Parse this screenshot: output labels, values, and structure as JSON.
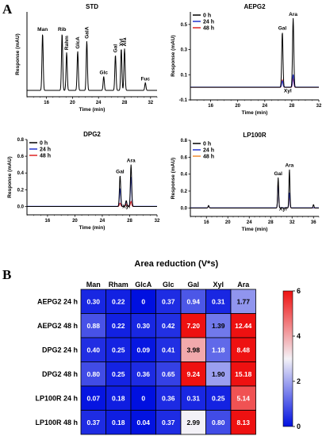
{
  "panel_labels": {
    "a": "A",
    "b": "B"
  },
  "chart_data": [
    {
      "type": "line",
      "title": "STD",
      "xlabel": "Time (min)",
      "ylabel": "Response (mAU)",
      "xlim": [
        13,
        33
      ],
      "xticks": [
        16,
        20,
        24,
        28,
        32
      ],
      "ylim": [
        -0.05,
        0.62
      ],
      "yticks": [],
      "series": [
        {
          "name": "",
          "color": "#000000",
          "peaks": [
            [
              15.4,
              0.45
            ],
            [
              18.4,
              0.45
            ],
            [
              19.1,
              0.3
            ],
            [
              20.8,
              0.31
            ],
            [
              22.2,
              0.39
            ],
            [
              24.8,
              0.11
            ],
            [
              26.6,
              0.28
            ],
            [
              27.5,
              0.33
            ],
            [
              28.0,
              0.33
            ],
            [
              31.2,
              0.06
            ]
          ]
        }
      ],
      "annotations": [
        {
          "label": "Man",
          "x": 15.4,
          "y": 0.45
        },
        {
          "label": "Rib",
          "x": 18.4,
          "y": 0.45
        },
        {
          "label": "Rahm",
          "x": 19.1,
          "y": 0.3,
          "vertical": true
        },
        {
          "label": "GlcA",
          "x": 20.8,
          "y": 0.31,
          "vertical": true
        },
        {
          "label": "GalA",
          "x": 22.2,
          "y": 0.39,
          "vertical": true
        },
        {
          "label": "Glc",
          "x": 24.8,
          "y": 0.11
        },
        {
          "label": "Gal",
          "x": 26.6,
          "y": 0.28,
          "vertical": true
        },
        {
          "label": "Xyl",
          "x": 27.5,
          "y": 0.33,
          "vertical": true
        },
        {
          "label": "Ara",
          "x": 28.0,
          "y": 0.33,
          "vertical": true
        },
        {
          "label": "Fuc",
          "x": 31.2,
          "y": 0.06
        }
      ]
    },
    {
      "type": "line",
      "title": "AEPG2",
      "xlabel": "Time (min)",
      "ylabel": "Response (mAU)",
      "xlim": [
        13,
        32
      ],
      "xticks": [
        16,
        20,
        24,
        28,
        32
      ],
      "ylim": [
        -0.1,
        0.6
      ],
      "yticks": [
        -0.1,
        0.1,
        0.3,
        0.5
      ],
      "series": [
        {
          "name": "0 h",
          "color": "#000000",
          "peaks": [
            [
              26.6,
              0.44
            ],
            [
              28.2,
              0.55
            ]
          ]
        },
        {
          "name": "24 h",
          "color": "#2233cc",
          "peaks": [
            [
              26.6,
              0.05
            ],
            [
              28.2,
              0.1
            ]
          ]
        },
        {
          "name": "48 h",
          "color": "#dd2222",
          "peaks": [
            [
              26.6,
              0.06
            ],
            [
              28.2,
              0.07
            ]
          ]
        }
      ],
      "annotations": [
        {
          "label": "Gal",
          "x": 26.6,
          "y": 0.44
        },
        {
          "label": "Ara",
          "x": 28.2,
          "y": 0.55
        },
        {
          "label": "Xyl",
          "x": 27.4,
          "y": -0.04
        }
      ]
    },
    {
      "type": "line",
      "title": "DPG2",
      "xlabel": "Time (min)",
      "ylabel": "Response (mAU)",
      "xlim": [
        13,
        32
      ],
      "xticks": [
        16,
        20,
        24,
        28,
        32
      ],
      "ylim": [
        -0.1,
        0.8
      ],
      "yticks": [
        0.0,
        0.2,
        0.4,
        0.6,
        0.8
      ],
      "series": [
        {
          "name": "0 h",
          "color": "#000000",
          "peaks": [
            [
              26.6,
              0.37
            ],
            [
              27.5,
              0.07
            ],
            [
              28.2,
              0.5
            ]
          ]
        },
        {
          "name": "24 h",
          "color": "#2233cc",
          "peaks": [
            [
              26.6,
              0.21
            ],
            [
              27.5,
              0.06
            ],
            [
              28.2,
              0.35
            ]
          ]
        },
        {
          "name": "48 h",
          "color": "#dd2222",
          "peaks": [
            [
              26.6,
              0.04
            ],
            [
              27.5,
              0.03
            ],
            [
              28.2,
              0.06
            ]
          ]
        }
      ],
      "annotations": [
        {
          "label": "Gal",
          "x": 26.6,
          "y": 0.37
        },
        {
          "label": "Ara",
          "x": 28.2,
          "y": 0.5
        },
        {
          "label": "Xyl",
          "x": 27.5,
          "y": -0.02
        }
      ]
    },
    {
      "type": "line",
      "title": "LP100R",
      "xlabel": "Time (min)",
      "ylabel": "Response (mAU)",
      "xlim": [
        13,
        37
      ],
      "xticks": [
        16,
        20,
        24,
        28,
        32,
        36
      ],
      "ylim": [
        -0.1,
        0.8
      ],
      "yticks": [
        0.0,
        0.2,
        0.4,
        0.6,
        0.8
      ],
      "series": [
        {
          "name": "0 h",
          "color": "#000000",
          "peaks": [
            [
              29.4,
              0.36
            ],
            [
              31.5,
              0.46
            ],
            [
              16.4,
              0.03
            ],
            [
              36.0,
              0.04
            ]
          ]
        },
        {
          "name": "24 h",
          "color": "#2233cc",
          "peaks": [
            [
              29.4,
              0.3
            ],
            [
              31.5,
              0.18
            ],
            [
              16.4,
              0.02
            ]
          ]
        },
        {
          "name": "48 h",
          "color": "#f08a30",
          "peaks": [
            [
              29.4,
              0.32
            ],
            [
              31.5,
              0.14
            ],
            [
              16.4,
              0.02
            ]
          ]
        }
      ],
      "annotations": [
        {
          "label": "Gal",
          "x": 29.4,
          "y": 0.36
        },
        {
          "label": "Ara",
          "x": 31.5,
          "y": 0.46
        },
        {
          "label": "Xyl",
          "x": 30.3,
          "y": -0.03
        }
      ]
    },
    {
      "type": "heatmap",
      "title": "Area reduction (V*s)",
      "columns": [
        "Man",
        "Rham",
        "GlcA",
        "Glc",
        "Gal",
        "Xyl",
        "Ara"
      ],
      "rows": [
        "AEPG2 24 h",
        "AEPG2 48 h",
        "DPG2 24 h",
        "DPG2 48 h",
        "LP100R 24 h",
        "LP100R 48 h"
      ],
      "values": [
        [
          "0.30",
          "0.22",
          "0",
          "0.37",
          "0.94",
          "0.31",
          "1.77"
        ],
        [
          "0.88",
          "0.22",
          "0.30",
          "0.42",
          "7.20",
          "1.39",
          "12.44"
        ],
        [
          "0.40",
          "0.25",
          "0.09",
          "0.41",
          "3.98",
          "1.18",
          "8.48"
        ],
        [
          "0.80",
          "0.25",
          "0.36",
          "0.65",
          "9.24",
          "1.90",
          "15.18"
        ],
        [
          "0.07",
          "0.18",
          "0",
          "0.36",
          "0.31",
          "0.25",
          "5.14"
        ],
        [
          "0.37",
          "0.18",
          "0.04",
          "0.37",
          "2.99",
          "0.80",
          "8.13"
        ]
      ],
      "colorbar": {
        "min": 0,
        "max": 6,
        "ticks": [
          0,
          2,
          4,
          6
        ],
        "low_color": "#0010e0",
        "mid_color": "#f4f2f7",
        "high_color": "#ee1111"
      }
    }
  ]
}
